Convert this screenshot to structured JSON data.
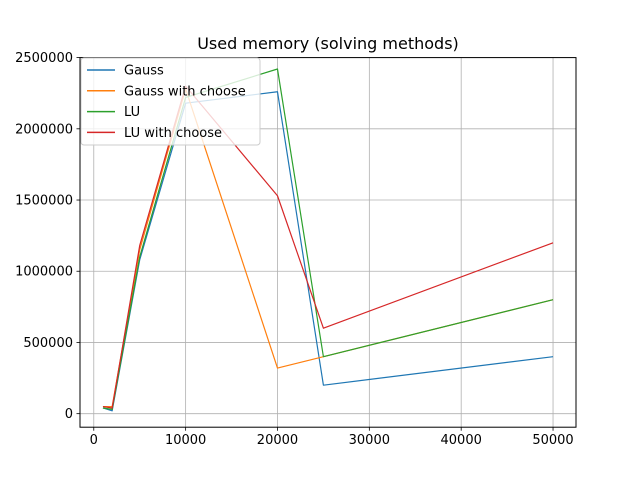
{
  "chart_data": {
    "type": "line",
    "title": "Used memory (solving methods)",
    "xlabel": "",
    "ylabel": "",
    "xlim": [
      -1500,
      52500
    ],
    "ylim": [
      -95000,
      2500000
    ],
    "xticks": [
      0,
      10000,
      20000,
      30000,
      40000,
      50000
    ],
    "xtick_labels": [
      "0",
      "10000",
      "20000",
      "30000",
      "40000",
      "50000"
    ],
    "yticks": [
      0,
      500000,
      1000000,
      1500000,
      2000000,
      2500000
    ],
    "ytick_labels": [
      "0",
      "500000",
      "1000000",
      "1500000",
      "2000000",
      "2500000"
    ],
    "grid": true,
    "legend_position": "top-left",
    "x": [
      1000,
      2000,
      5000,
      10000,
      20000,
      25000,
      50000
    ],
    "series": [
      {
        "name": "Gauss",
        "color": "#1f77b4",
        "values": [
          40000,
          20000,
          1080000,
          2180000,
          2260000,
          200000,
          400000
        ]
      },
      {
        "name": "Gauss with choose",
        "color": "#ff7f0e",
        "values": [
          50000,
          50000,
          1150000,
          2280000,
          320000,
          400000,
          800000
        ]
      },
      {
        "name": "LU",
        "color": "#2ca02c",
        "values": [
          40000,
          30000,
          1100000,
          2220000,
          2420000,
          400000,
          800000
        ]
      },
      {
        "name": "LU with choose",
        "color": "#d62728",
        "values": [
          50000,
          40000,
          1180000,
          2300000,
          1530000,
          600000,
          1200000
        ]
      }
    ]
  }
}
